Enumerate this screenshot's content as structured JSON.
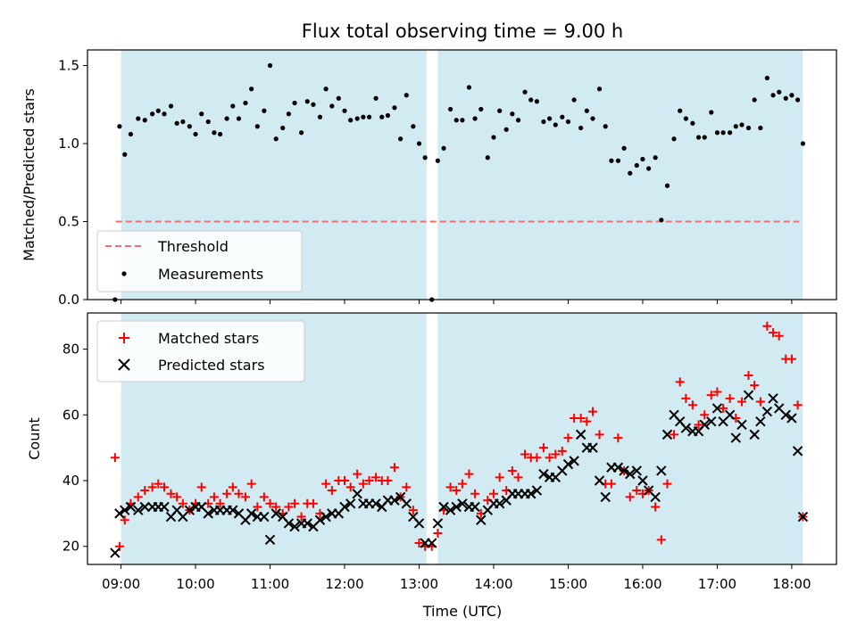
{
  "chart_data": [
    {
      "type": "scatter",
      "title": "Flux total observing time = 9.00 h",
      "ylabel": "Matched/Predicted stars",
      "xlabel": "",
      "xlim": [
        8.55,
        18.6
      ],
      "ylim": [
        0.0,
        1.6
      ],
      "yticks": [
        0.0,
        0.5,
        1.0,
        1.5
      ],
      "ytick_labels": [
        "0.0",
        "0.5",
        "1.0",
        "1.5"
      ],
      "observing_windows": [
        [
          9.0,
          13.1
        ],
        [
          13.25,
          18.15
        ]
      ],
      "legend": {
        "placement": "lower-left",
        "threshold_label": "Threshold",
        "measurements_label": "Measurements"
      },
      "threshold": {
        "value": 0.5,
        "x_range": [
          8.93,
          18.1
        ],
        "color": "#f07070"
      },
      "measurements_color": "#000000",
      "x": [
        8.92,
        8.98,
        9.05,
        9.13,
        9.23,
        9.32,
        9.42,
        9.5,
        9.58,
        9.67,
        9.75,
        9.83,
        9.92,
        10.0,
        10.08,
        10.17,
        10.25,
        10.33,
        10.42,
        10.5,
        10.58,
        10.67,
        10.75,
        10.83,
        10.92,
        11.0,
        11.08,
        11.17,
        11.25,
        11.33,
        11.42,
        11.5,
        11.58,
        11.67,
        11.75,
        11.83,
        11.92,
        12.0,
        12.08,
        12.17,
        12.25,
        12.33,
        12.42,
        12.5,
        12.58,
        12.67,
        12.75,
        12.83,
        12.92,
        13.0,
        13.08,
        13.17,
        13.25,
        13.33,
        13.42,
        13.5,
        13.58,
        13.67,
        13.75,
        13.83,
        13.92,
        14.0,
        14.08,
        14.17,
        14.25,
        14.33,
        14.42,
        14.5,
        14.58,
        14.67,
        14.75,
        14.83,
        14.92,
        15.0,
        15.08,
        15.17,
        15.25,
        15.33,
        15.42,
        15.5,
        15.58,
        15.67,
        15.75,
        15.83,
        15.92,
        16.0,
        16.08,
        16.17,
        16.25,
        16.33,
        16.42,
        16.5,
        16.58,
        16.67,
        16.75,
        16.83,
        16.92,
        17.0,
        17.08,
        17.17,
        17.25,
        17.33,
        17.42,
        17.5,
        17.58,
        17.67,
        17.75,
        17.83,
        17.92,
        18.0,
        18.08,
        18.15
      ],
      "y": [
        0.0,
        1.11,
        0.93,
        1.06,
        1.16,
        1.15,
        1.19,
        1.21,
        1.19,
        1.24,
        1.13,
        1.14,
        1.11,
        1.06,
        1.19,
        1.14,
        1.07,
        1.06,
        1.16,
        1.24,
        1.16,
        1.26,
        1.35,
        1.11,
        1.21,
        1.5,
        1.03,
        1.1,
        1.19,
        1.26,
        1.07,
        1.27,
        1.25,
        1.17,
        1.35,
        1.24,
        1.29,
        1.21,
        1.15,
        1.16,
        1.17,
        1.17,
        1.29,
        1.17,
        1.18,
        1.23,
        1.03,
        1.31,
        1.11,
        1.0,
        0.91,
        0.0,
        0.89,
        0.97,
        1.22,
        1.15,
        1.15,
        1.36,
        1.16,
        1.22,
        0.91,
        1.04,
        1.21,
        1.09,
        1.19,
        1.15,
        1.33,
        1.28,
        1.27,
        1.14,
        1.16,
        1.12,
        1.17,
        1.14,
        1.28,
        1.1,
        1.21,
        1.16,
        1.35,
        1.11,
        0.89,
        0.89,
        0.97,
        0.81,
        0.86,
        0.9,
        0.84,
        0.91,
        0.51,
        0.73,
        1.03,
        1.21,
        1.16,
        1.13,
        1.04,
        1.04,
        1.2,
        1.07,
        1.07,
        1.07,
        1.11,
        1.12,
        1.1,
        1.28,
        1.1,
        1.42,
        1.31,
        1.33,
        1.29,
        1.31,
        1.28,
        1.0
      ]
    },
    {
      "type": "scatter",
      "title": "",
      "ylabel": "Count",
      "xlabel": "Time (UTC)",
      "xlim": [
        8.55,
        18.6
      ],
      "ylim": [
        14.5,
        91.0
      ],
      "yticks": [
        20,
        40,
        60,
        80
      ],
      "ytick_labels": [
        "20",
        "40",
        "60",
        "80"
      ],
      "xticks": [
        9,
        10,
        11,
        12,
        13,
        14,
        15,
        16,
        17,
        18
      ],
      "xtick_labels": [
        "09:00",
        "10:00",
        "11:00",
        "12:00",
        "13:00",
        "14:00",
        "15:00",
        "16:00",
        "17:00",
        "18:00"
      ],
      "observing_windows": [
        [
          9.0,
          13.1
        ],
        [
          13.25,
          18.15
        ]
      ],
      "legend": {
        "placement": "upper-left"
      },
      "series": [
        {
          "name": "Matched stars",
          "marker": "plus",
          "color": "#ff0000",
          "x": [
            8.92,
            8.98,
            9.05,
            9.13,
            9.23,
            9.32,
            9.42,
            9.5,
            9.58,
            9.67,
            9.75,
            9.83,
            9.92,
            10.0,
            10.08,
            10.17,
            10.25,
            10.33,
            10.42,
            10.5,
            10.58,
            10.67,
            10.75,
            10.83,
            10.92,
            11.0,
            11.08,
            11.17,
            11.25,
            11.33,
            11.42,
            11.5,
            11.58,
            11.67,
            11.75,
            11.83,
            11.92,
            12.0,
            12.08,
            12.17,
            12.25,
            12.33,
            12.42,
            12.5,
            12.58,
            12.67,
            12.75,
            12.83,
            12.92,
            13.0,
            13.08,
            13.17,
            13.25,
            13.33,
            13.42,
            13.5,
            13.58,
            13.67,
            13.75,
            13.83,
            13.92,
            14.0,
            14.08,
            14.17,
            14.25,
            14.33,
            14.42,
            14.5,
            14.58,
            14.67,
            14.75,
            14.83,
            14.92,
            15.0,
            15.08,
            15.17,
            15.25,
            15.33,
            15.42,
            15.5,
            15.58,
            15.67,
            15.75,
            15.83,
            15.92,
            16.0,
            16.08,
            16.17,
            16.25,
            16.33,
            16.42,
            16.5,
            16.58,
            16.67,
            16.75,
            16.83,
            16.92,
            17.0,
            17.08,
            17.17,
            17.25,
            17.33,
            17.42,
            17.5,
            17.58,
            17.67,
            17.75,
            17.83,
            17.92,
            18.0,
            18.08,
            18.15
          ],
          "values": [
            47,
            20,
            28,
            33,
            35,
            37,
            38,
            39,
            38,
            36,
            35,
            33,
            31,
            33,
            38,
            33,
            35,
            33,
            36,
            38,
            36,
            35,
            39,
            32,
            35,
            33,
            32,
            30,
            32,
            33,
            29,
            33,
            33,
            30,
            39,
            37,
            40,
            40,
            38,
            42,
            39,
            40,
            41,
            40,
            40,
            44,
            35,
            38,
            31,
            21,
            20,
            20,
            24,
            31,
            38,
            37,
            39,
            42,
            36,
            30,
            34,
            36,
            41,
            37,
            43,
            41,
            48,
            47,
            47,
            50,
            47,
            48,
            49,
            53,
            59,
            59,
            58,
            61,
            54,
            39,
            39,
            53,
            43,
            35,
            37,
            36,
            37,
            32,
            22,
            39,
            54,
            70,
            65,
            63,
            57,
            60,
            66,
            67,
            62,
            65,
            59,
            64,
            72,
            69,
            64,
            87,
            85,
            84,
            77,
            77,
            63,
            29
          ]
        },
        {
          "name": "Predicted stars",
          "marker": "x",
          "color": "#000000",
          "x": [
            8.92,
            8.98,
            9.05,
            9.13,
            9.23,
            9.32,
            9.42,
            9.5,
            9.58,
            9.67,
            9.75,
            9.83,
            9.92,
            10.0,
            10.08,
            10.17,
            10.25,
            10.33,
            10.42,
            10.5,
            10.58,
            10.67,
            10.75,
            10.83,
            10.92,
            11.0,
            11.08,
            11.17,
            11.25,
            11.33,
            11.42,
            11.5,
            11.58,
            11.67,
            11.75,
            11.83,
            11.92,
            12.0,
            12.08,
            12.17,
            12.25,
            12.33,
            12.42,
            12.5,
            12.58,
            12.67,
            12.75,
            12.83,
            12.92,
            13.0,
            13.08,
            13.17,
            13.25,
            13.33,
            13.42,
            13.5,
            13.58,
            13.67,
            13.75,
            13.83,
            13.92,
            14.0,
            14.08,
            14.17,
            14.25,
            14.33,
            14.42,
            14.5,
            14.58,
            14.67,
            14.75,
            14.83,
            14.92,
            15.0,
            15.08,
            15.17,
            15.25,
            15.33,
            15.42,
            15.5,
            15.58,
            15.67,
            15.75,
            15.83,
            15.92,
            16.0,
            16.08,
            16.17,
            16.25,
            16.33,
            16.42,
            16.5,
            16.58,
            16.67,
            16.75,
            16.83,
            16.92,
            17.0,
            17.08,
            17.17,
            17.25,
            17.33,
            17.42,
            17.5,
            17.58,
            17.67,
            17.75,
            17.83,
            17.92,
            18.0,
            18.08,
            18.15
          ],
          "values": [
            18,
            30,
            31,
            32,
            31,
            32,
            32,
            32,
            32,
            29,
            31,
            29,
            31,
            32,
            32,
            30,
            31,
            31,
            31,
            31,
            30,
            28,
            30,
            29,
            29,
            22,
            30,
            29,
            27,
            26,
            27,
            27,
            26,
            28,
            29,
            30,
            30,
            32,
            33,
            36,
            33,
            33,
            33,
            32,
            34,
            34,
            35,
            33,
            29,
            27,
            21,
            21,
            27,
            32,
            31,
            32,
            33,
            32,
            32,
            28,
            31,
            33,
            33,
            34,
            36,
            36,
            36,
            36,
            37,
            42,
            41,
            41,
            43,
            45,
            46,
            54,
            50,
            50,
            40,
            35,
            44,
            44,
            43,
            42,
            43,
            40,
            37,
            35,
            43,
            54,
            60,
            58,
            56,
            55,
            55,
            57,
            58,
            62,
            58,
            60,
            53,
            57,
            66,
            54,
            58,
            61,
            65,
            62,
            60,
            59,
            49,
            29
          ]
        }
      ]
    }
  ]
}
